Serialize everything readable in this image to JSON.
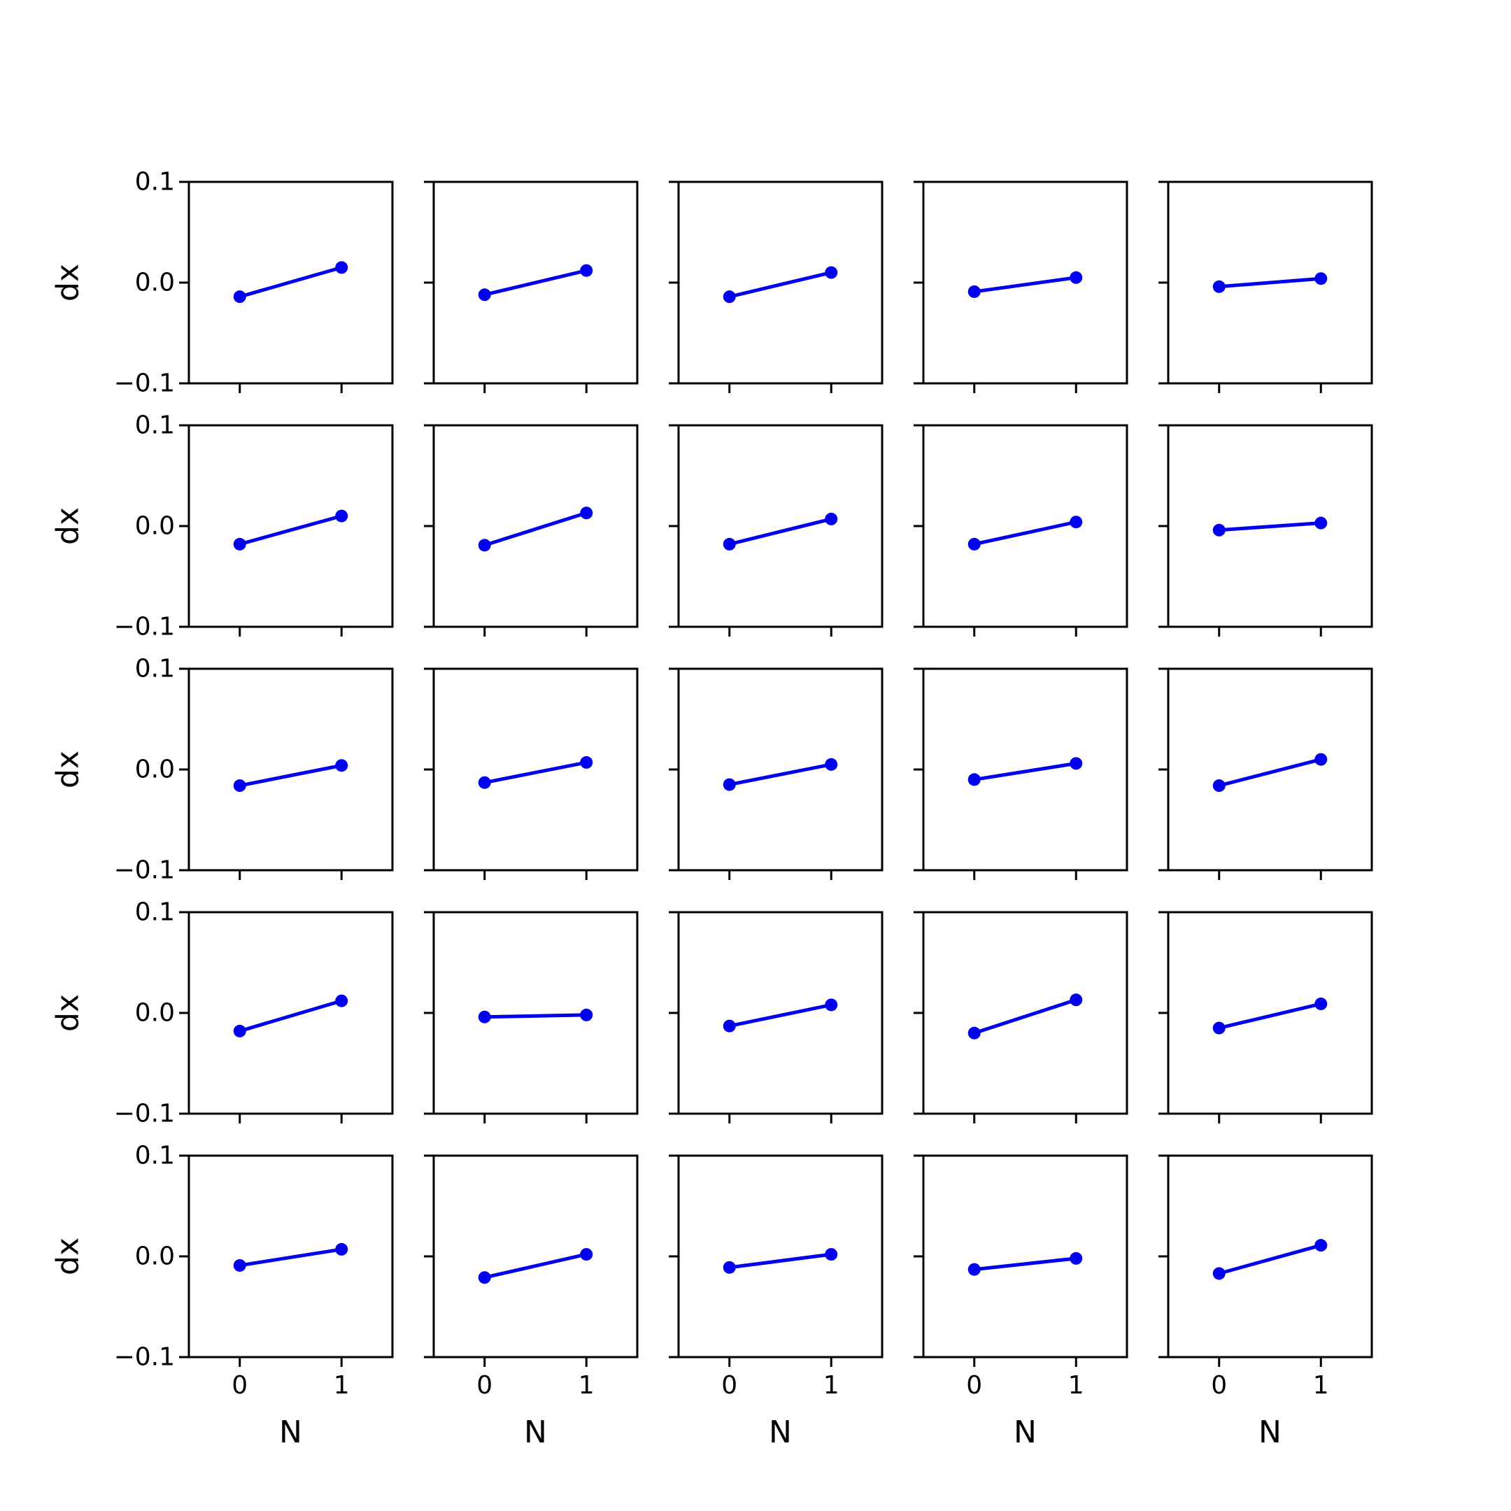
{
  "chart_data": {
    "type": "line",
    "layout": "grid",
    "rows": 5,
    "cols": 5,
    "xlabel": "N",
    "ylabel": "dx",
    "xlim": [
      -0.5,
      1.5
    ],
    "ylim": [
      -0.1,
      0.1
    ],
    "xticks": [
      0,
      1
    ],
    "xtick_labels": [
      "0",
      "1"
    ],
    "yticks": [
      0.1,
      0.0,
      -0.1
    ],
    "ytick_labels": [
      "0.1",
      "0.0",
      "−0.1"
    ],
    "grid": false,
    "marker": "circle",
    "color": "#0000ee",
    "x": [
      0,
      1
    ],
    "panels": [
      [
        -0.014,
        0.015
      ],
      [
        -0.012,
        0.012
      ],
      [
        -0.014,
        0.01
      ],
      [
        -0.009,
        0.005
      ],
      [
        -0.004,
        0.004
      ],
      [
        -0.018,
        0.01
      ],
      [
        -0.019,
        0.013
      ],
      [
        -0.018,
        0.007
      ],
      [
        -0.018,
        0.004
      ],
      [
        -0.004,
        0.003
      ],
      [
        -0.016,
        0.004
      ],
      [
        -0.013,
        0.007
      ],
      [
        -0.015,
        0.005
      ],
      [
        -0.01,
        0.006
      ],
      [
        -0.016,
        0.01
      ],
      [
        -0.018,
        0.012
      ],
      [
        -0.004,
        -0.002
      ],
      [
        -0.013,
        0.008
      ],
      [
        -0.02,
        0.013
      ],
      [
        -0.015,
        0.009
      ],
      [
        -0.009,
        0.007
      ],
      [
        -0.021,
        0.002
      ],
      [
        -0.011,
        0.002
      ],
      [
        -0.013,
        -0.002
      ],
      [
        -0.017,
        0.011
      ]
    ]
  }
}
